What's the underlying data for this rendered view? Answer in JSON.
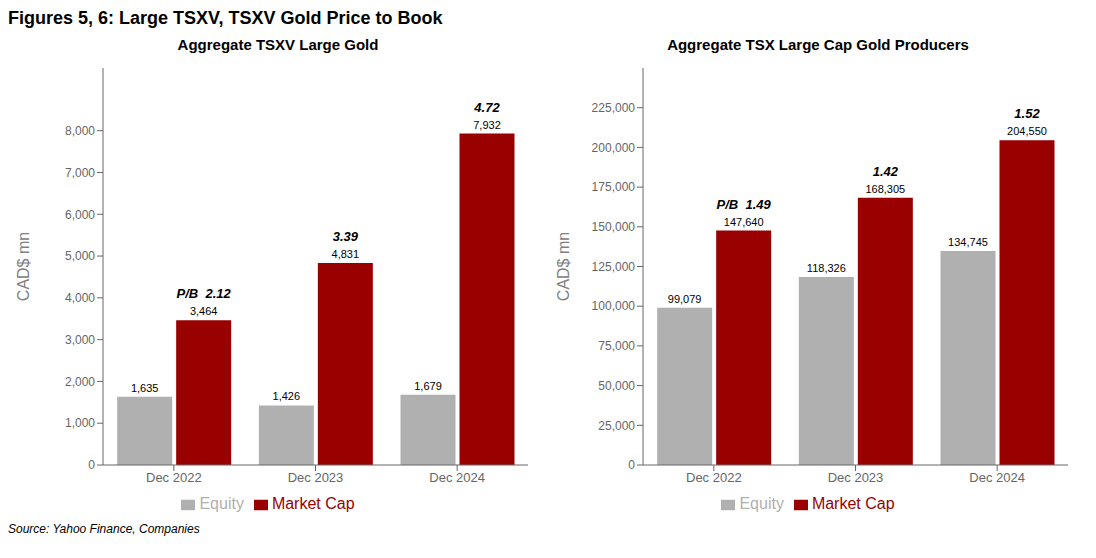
{
  "title": "Figures 5, 6: Large TSXV, TSXV Gold Price to Book",
  "source": "Source: Yahoo Finance, Companies",
  "chart_data": [
    {
      "type": "bar",
      "title": "Aggregate TSXV Large Gold",
      "categories": [
        "Dec 2022",
        "Dec 2023",
        "Dec 2024"
      ],
      "series": [
        {
          "name": "Equity",
          "color": "#b0b0b0",
          "values": [
            1635,
            1426,
            1679
          ],
          "value_labels": [
            "1,635",
            "1,426",
            "1,679"
          ]
        },
        {
          "name": "Market Cap",
          "color": "#990000",
          "values": [
            3464,
            4831,
            7932
          ],
          "value_labels": [
            "3,464",
            "4,831",
            "7,932"
          ]
        }
      ],
      "annotations": [
        "P/B  2.12",
        "3.39",
        "4.72"
      ],
      "ylim": [
        0,
        9500
      ],
      "yticks": [
        0,
        {
          "value": 1000,
          "label": "1,000"
        },
        {
          "value": 2000,
          "label": "2,000"
        },
        {
          "value": 3000,
          "label": "3,000"
        },
        {
          "value": 4000,
          "label": "4,000"
        },
        {
          "value": 5000,
          "label": "5,000"
        },
        {
          "value": 6000,
          "label": "6,000"
        },
        {
          "value": 7000,
          "label": "7,000"
        },
        {
          "value": 8000,
          "label": "8,000"
        }
      ],
      "ylabel": "CAD$ mn",
      "grid": false,
      "legend": "bottom",
      "data_labels": true
    },
    {
      "type": "bar",
      "title": "Aggregate TSX Large Cap Gold Producers",
      "categories": [
        "Dec 2022",
        "Dec 2023",
        "Dec 2024"
      ],
      "series": [
        {
          "name": "Equity",
          "color": "#b0b0b0",
          "values": [
            99079,
            118326,
            134745
          ],
          "value_labels": [
            "99,079",
            "118,326",
            "134,745"
          ]
        },
        {
          "name": "Market Cap",
          "color": "#990000",
          "values": [
            147640,
            168305,
            204550
          ],
          "value_labels": [
            "147,640",
            "168,305",
            "204,550"
          ]
        }
      ],
      "annotations": [
        "P/B  1.49",
        "1.42",
        "1.52"
      ],
      "ylim": [
        0,
        250000
      ],
      "yticks": [
        0,
        {
          "value": 25000,
          "label": "25,000"
        },
        {
          "value": 50000,
          "label": "50,000"
        },
        {
          "value": 75000,
          "label": "75,000"
        },
        {
          "value": 100000,
          "label": "100,000"
        },
        {
          "value": 125000,
          "label": "125,000"
        },
        {
          "value": 150000,
          "label": "150,000"
        },
        {
          "value": 175000,
          "label": "175,000"
        },
        {
          "value": 200000,
          "label": "200,000"
        },
        {
          "value": 225000,
          "label": "225,000"
        }
      ],
      "ylabel": "CAD$ mn",
      "grid": false,
      "legend": "bottom",
      "data_labels": true
    }
  ]
}
